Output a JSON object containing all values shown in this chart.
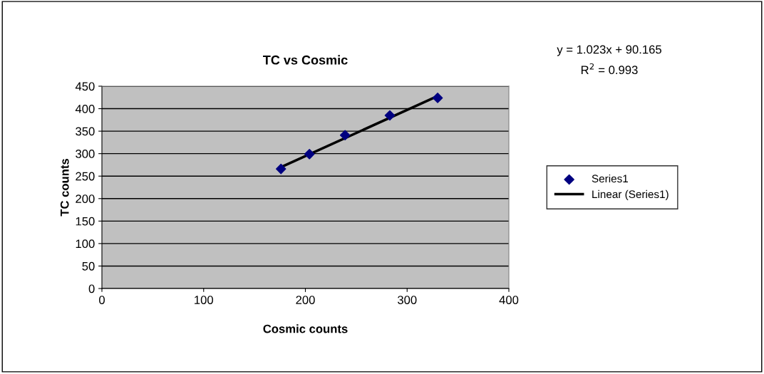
{
  "chart_data": {
    "type": "scatter",
    "title": "TC vs Cosmic",
    "xlabel": "Cosmic counts",
    "ylabel": "TC counts",
    "xlim": [
      0,
      400
    ],
    "xticks": [
      0,
      100,
      200,
      300,
      400
    ],
    "ylim": [
      0,
      450
    ],
    "yticks": [
      0,
      50,
      100,
      150,
      200,
      250,
      300,
      350,
      400,
      450
    ],
    "grid": "y",
    "legend": "right",
    "annotations": [
      "y = 1.023x + 90.165",
      "R$^{2}$ = 0.993"
    ],
    "series": [
      {
        "name": "Series1",
        "marker": "diamond",
        "color": "#000080",
        "x": [
          176,
          204,
          239,
          283,
          330
        ],
        "values": [
          266,
          299,
          341,
          385,
          424
        ]
      },
      {
        "name": "Linear (Series1)",
        "type": "line",
        "marker": "none",
        "color": "#000000",
        "x": [
          176,
          330
        ],
        "values": [
          270,
          428
        ]
      }
    ]
  }
}
